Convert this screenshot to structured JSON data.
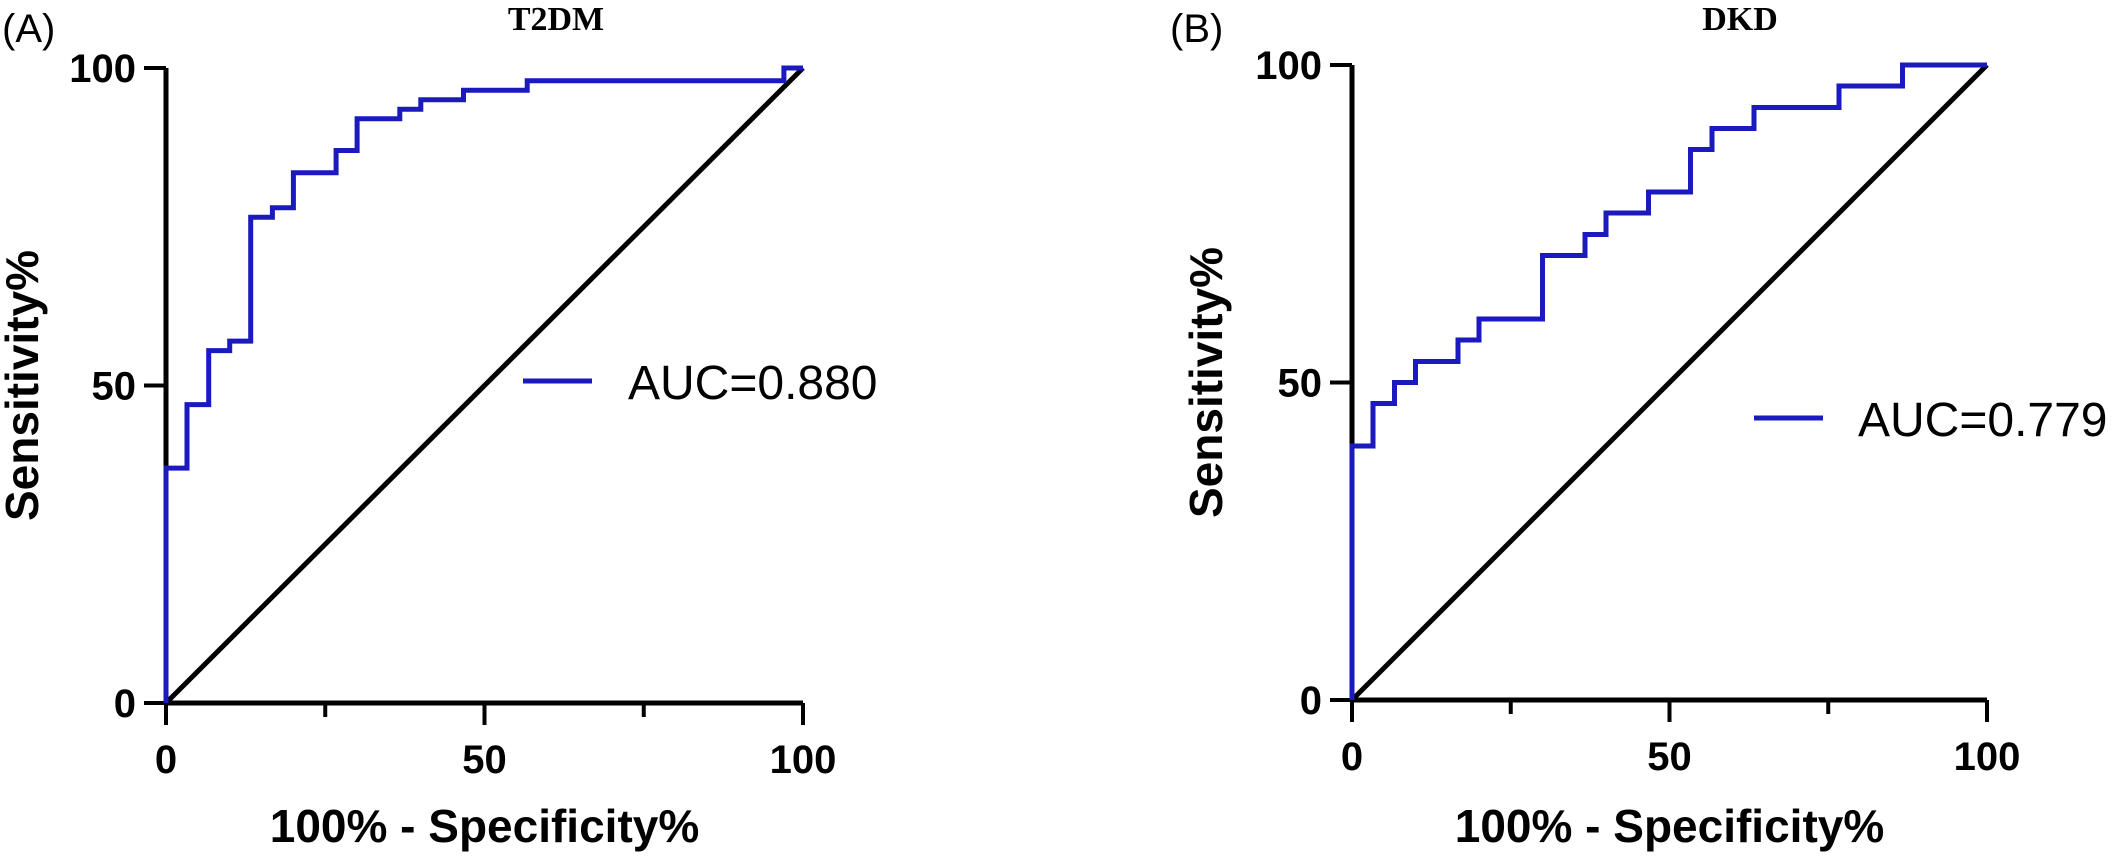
{
  "chart_data": [
    {
      "type": "line",
      "panel_label": "(A)",
      "title": "T2DM",
      "xlabel": "100% - Specificity%",
      "ylabel": "Sensitivity%",
      "xlim": [
        0,
        100
      ],
      "ylim": [
        0,
        100
      ],
      "x_ticks": [
        0,
        50,
        100
      ],
      "y_ticks": [
        0,
        50,
        100
      ],
      "legend": {
        "label": "AUC=0.880",
        "placement": "right-middle"
      },
      "line_color": "#1a1abf",
      "series": [
        {
          "x": [
            0,
            0,
            3.3,
            3.3,
            6.7,
            6.7,
            10,
            10,
            13.3,
            13.3,
            16.7,
            16.7,
            20,
            20,
            26.7,
            26.7,
            30,
            30,
            36.7,
            36.7,
            40,
            40,
            46.7,
            46.7,
            56.7,
            56.7,
            97,
            97,
            100
          ],
          "y": [
            0,
            37,
            37,
            47,
            47,
            55.5,
            55.5,
            57,
            57,
            76.5,
            76.5,
            78,
            78,
            83.5,
            83.5,
            87,
            87,
            92,
            92,
            93.5,
            93.5,
            95,
            95,
            96.5,
            96.5,
            98,
            98,
            100,
            100
          ]
        }
      ],
      "reference_line": {
        "x": [
          0,
          100
        ],
        "y": [
          0,
          100
        ]
      }
    },
    {
      "type": "line",
      "panel_label": "(B)",
      "title": "DKD",
      "xlabel": "100% - Specificity%",
      "ylabel": "Sensitivity%",
      "xlim": [
        0,
        100
      ],
      "ylim": [
        0,
        100
      ],
      "x_ticks": [
        0,
        50,
        100
      ],
      "y_ticks": [
        0,
        50,
        100
      ],
      "legend": {
        "label": "AUC=0.779",
        "placement": "right-middle"
      },
      "line_color": "#1a1abf",
      "series": [
        {
          "x": [
            0,
            0,
            3.3,
            3.3,
            6.7,
            6.7,
            10,
            10,
            16.7,
            16.7,
            20,
            20,
            30,
            30,
            36.7,
            36.7,
            40,
            40,
            46.7,
            46.7,
            53.3,
            53.3,
            56.7,
            56.7,
            63.3,
            63.3,
            76.7,
            76.7,
            86.7,
            86.7,
            100
          ],
          "y": [
            0,
            40,
            40,
            46.7,
            46.7,
            50,
            50,
            53.3,
            53.3,
            56.7,
            56.7,
            60,
            60,
            70,
            70,
            73.3,
            73.3,
            76.7,
            76.7,
            80,
            80,
            86.7,
            86.7,
            90,
            90,
            93.3,
            93.3,
            96.7,
            96.7,
            100,
            100
          ]
        }
      ],
      "reference_line": {
        "x": [
          0,
          100
        ],
        "y": [
          0,
          100
        ]
      }
    }
  ]
}
